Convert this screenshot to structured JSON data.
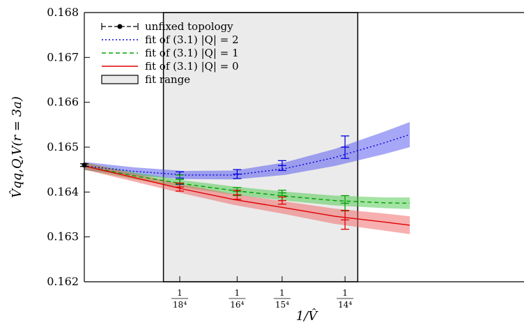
{
  "chart_data": {
    "type": "line",
    "title": "",
    "xlabel": "1/V̂",
    "ylabel": "V̂qq,Q,V(r = 3a)",
    "ylim": [
      0.162,
      0.168
    ],
    "xlim": [
      0,
      4.39e-05
    ],
    "yticks": [
      {
        "value": 0.162,
        "label": "0.162"
      },
      {
        "value": 0.163,
        "label": "0.163"
      },
      {
        "value": 0.164,
        "label": "0.164"
      },
      {
        "value": 0.165,
        "label": "0.165"
      },
      {
        "value": 0.166,
        "label": "0.166"
      },
      {
        "value": 0.167,
        "label": "0.167"
      },
      {
        "value": 0.168,
        "label": "0.168"
      }
    ],
    "xticks": [
      {
        "value": 9.53e-06,
        "num": "1",
        "den": "18⁴"
      },
      {
        "value": 1.526e-05,
        "num": "1",
        "den": "16⁴"
      },
      {
        "value": 1.975e-05,
        "num": "1",
        "den": "15⁴"
      },
      {
        "value": 2.603e-05,
        "num": "1",
        "den": "14⁴"
      }
    ],
    "legend_position": "top-left",
    "fit_range": {
      "name": "fit range",
      "x0": 7.9e-06,
      "x1": 2.73e-05,
      "color": "#ebebeb"
    },
    "series": [
      {
        "name": "unfixed topology",
        "kind": "points",
        "color": "#000000",
        "points": [
          {
            "x": 0,
            "y": 0.1646,
            "err": 3e-05
          }
        ]
      },
      {
        "name": "fit of (3.1) |Q| = 2",
        "kind": "fit",
        "dash": "2,3",
        "color": "#0000dd",
        "band_color": "#5050f0",
        "curve": [
          {
            "x": 0,
            "y": 0.16458,
            "e": 9e-05
          },
          {
            "x": 5e-06,
            "y": 0.16446,
            "e": 9e-05
          },
          {
            "x": 1e-05,
            "y": 0.16438,
            "e": 9e-05
          },
          {
            "x": 1.5e-05,
            "y": 0.16438,
            "e": 0.0001
          },
          {
            "x": 2e-05,
            "y": 0.16452,
            "e": 0.00014
          },
          {
            "x": 2.5e-05,
            "y": 0.16477,
            "e": 0.00019
          },
          {
            "x": 3e-05,
            "y": 0.1651,
            "e": 0.00025
          },
          {
            "x": 3.25e-05,
            "y": 0.16528,
            "e": 0.00028
          }
        ],
        "points": [
          {
            "x": 9.53e-06,
            "y": 0.16431,
            "err": 0.00014
          },
          {
            "x": 1.526e-05,
            "y": 0.1644,
            "err": 0.0001
          },
          {
            "x": 1.975e-05,
            "y": 0.16459,
            "err": 0.00011
          },
          {
            "x": 2.603e-05,
            "y": 0.165,
            "err": 0.00025
          }
        ]
      },
      {
        "name": "fit of (3.1) |Q| = 1",
        "kind": "fit",
        "dash": "6,4",
        "color": "#00a000",
        "band_color": "#48c848",
        "curve": [
          {
            "x": 0,
            "y": 0.16458,
            "e": 8e-05
          },
          {
            "x": 5e-06,
            "y": 0.16436,
            "e": 8e-05
          },
          {
            "x": 1e-05,
            "y": 0.16418,
            "e": 8e-05
          },
          {
            "x": 1.5e-05,
            "y": 0.16403,
            "e": 9e-05
          },
          {
            "x": 2e-05,
            "y": 0.16391,
            "e": 0.0001
          },
          {
            "x": 2.5e-05,
            "y": 0.16381,
            "e": 0.00011
          },
          {
            "x": 3e-05,
            "y": 0.16376,
            "e": 0.00012
          },
          {
            "x": 3.25e-05,
            "y": 0.16375,
            "e": 0.00013
          }
        ],
        "points": [
          {
            "x": 9.53e-06,
            "y": 0.16428,
            "err": 0.0001
          },
          {
            "x": 1.526e-05,
            "y": 0.16401,
            "err": 9e-05
          },
          {
            "x": 1.975e-05,
            "y": 0.16398,
            "err": 6e-05
          },
          {
            "x": 2.603e-05,
            "y": 0.16375,
            "err": 0.00017
          }
        ]
      },
      {
        "name": "fit of (3.1) |Q| = 0",
        "kind": "fit",
        "dash": "",
        "color": "#e00000",
        "band_color": "#f06060",
        "curve": [
          {
            "x": 0,
            "y": 0.16458,
            "e": 8e-05
          },
          {
            "x": 5e-06,
            "y": 0.16432,
            "e": 9e-05
          },
          {
            "x": 1e-05,
            "y": 0.16406,
            "e": 0.0001
          },
          {
            "x": 1.5e-05,
            "y": 0.16383,
            "e": 0.00012
          },
          {
            "x": 2e-05,
            "y": 0.16365,
            "e": 0.00014
          },
          {
            "x": 2.5e-05,
            "y": 0.16346,
            "e": 0.00017
          },
          {
            "x": 3e-05,
            "y": 0.16333,
            "e": 0.00019
          },
          {
            "x": 3.25e-05,
            "y": 0.16326,
            "e": 0.0002
          }
        ],
        "points": [
          {
            "x": 9.53e-06,
            "y": 0.16411,
            "err": 9e-05
          },
          {
            "x": 1.526e-05,
            "y": 0.16394,
            "err": 0.0001
          },
          {
            "x": 1.975e-05,
            "y": 0.16381,
            "err": 8e-05
          },
          {
            "x": 2.603e-05,
            "y": 0.16338,
            "err": 0.00021
          }
        ]
      }
    ]
  }
}
